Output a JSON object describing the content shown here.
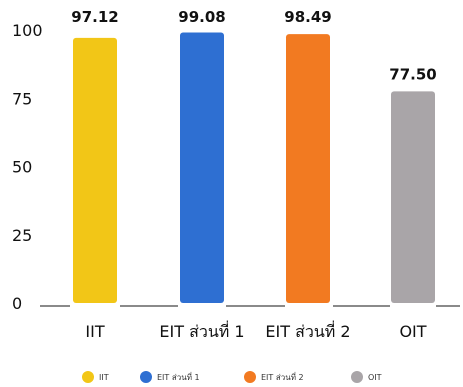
{
  "chart_data": {
    "type": "bar",
    "title": "",
    "xlabel": "",
    "ylabel": "",
    "ylim": [
      0,
      100
    ],
    "yticks": [
      0,
      25,
      50,
      75,
      100
    ],
    "grid": false,
    "legend_position": "bottom",
    "categories": [
      "IIT",
      "EIT ส่วนที่ 1",
      "EIT ส่วนที่ 2",
      "OIT"
    ],
    "values": [
      97.12,
      99.08,
      98.49,
      77.5
    ],
    "value_labels": [
      "97.12",
      "99.08",
      "98.49",
      "77.50"
    ],
    "colors": [
      "#F2C617",
      "#2E6FD2",
      "#F27A21",
      "#A9A5A8"
    ],
    "legend": [
      "IIT",
      "EIT ส่วนที่ 1",
      "EIT ส่วนที่ 2",
      "OIT"
    ]
  }
}
